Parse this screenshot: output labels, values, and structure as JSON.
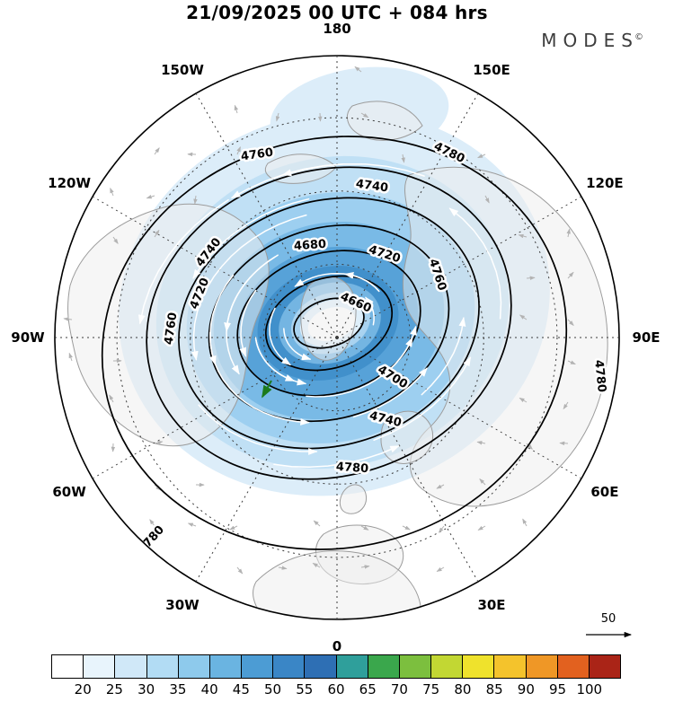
{
  "header": {
    "title": "21/09/2025  00 UTC  + 084 hrs",
    "logo": "MODES",
    "logo_mark": "©"
  },
  "chart_data": {
    "type": "contour-map",
    "projection": "north-polar-stereographic",
    "title": "21/09/2025 00 UTC + 084 hrs",
    "description": "Geopotential height contours with wind-speed shading and streamlines over the Northern Hemisphere",
    "longitude_labels": [
      "180",
      "150E",
      "120E",
      "90E",
      "60E",
      "30E",
      "0",
      "30W",
      "60W",
      "90W",
      "120W",
      "150W"
    ],
    "contour_levels": [
      4660,
      4680,
      4700,
      4720,
      4740,
      4760,
      4780
    ],
    "colorbar_ticks": [
      "20",
      "25",
      "30",
      "35",
      "40",
      "45",
      "50",
      "55",
      "60",
      "65",
      "70",
      "75",
      "80",
      "85",
      "90",
      "95",
      "100"
    ]
  },
  "reference_arrow": {
    "label": "50"
  },
  "colorbar": {
    "ticks": [
      "20",
      "25",
      "30",
      "35",
      "40",
      "45",
      "50",
      "55",
      "60",
      "65",
      "70",
      "75",
      "80",
      "85",
      "90",
      "95",
      "100"
    ],
    "colors": [
      "#ffffff",
      "#e8f4fc",
      "#d0e8f8",
      "#b2dcf4",
      "#8ecaec",
      "#6ab4e1",
      "#4c9cd4",
      "#3a86c6",
      "#2e6fb4",
      "#2f9f9b",
      "#3aa74c",
      "#7cbf3e",
      "#c2d733",
      "#efe22c",
      "#f4c32c",
      "#ef9726",
      "#e2611f",
      "#aa2417"
    ]
  },
  "colors": {
    "shading": [
      "#dcedf9",
      "#c0e0f5",
      "#9dcff0",
      "#79bae6",
      "#57a2d8",
      "#4190cb",
      "#74b5e2",
      "#a9d3f0",
      "#dfeffa",
      "#ffffff"
    ],
    "contour": "#000000",
    "coast": "#9c9c9c",
    "land": "#ededed",
    "graticule": "#3c3c3c",
    "streamline": "#ffffff",
    "weak_wind_arrow": "#b3b3b3",
    "green_arrow": "#1c7a1c"
  }
}
